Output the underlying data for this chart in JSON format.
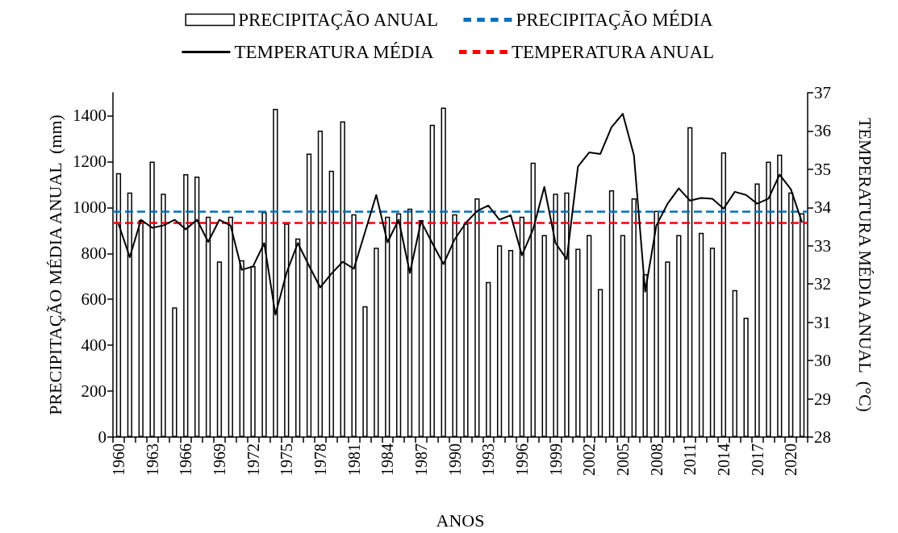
{
  "chart_data": {
    "type": "bar",
    "xlabel": "ANOS",
    "ylabel": "PRECIPITAÇÃO MÉDIA ANUAL  (mm)",
    "y2label": "TEMPERATURA MÉDIA ANUAL  (°C)",
    "categories": [
      "1960",
      null,
      null,
      "1963",
      null,
      null,
      "1966",
      null,
      null,
      "1969",
      null,
      null,
      "1972",
      null,
      null,
      "1975",
      null,
      null,
      "1978",
      null,
      null,
      "1981",
      null,
      null,
      "1984",
      null,
      null,
      "1987",
      null,
      null,
      "1990",
      null,
      null,
      "1993",
      null,
      null,
      "1996",
      null,
      null,
      "1999",
      null,
      null,
      "2002",
      null,
      null,
      "2005",
      null,
      null,
      "2008",
      null,
      null,
      "2011",
      null,
      null,
      "2014",
      null,
      null,
      "2017",
      null,
      null,
      "2020",
      null
    ],
    "series": [
      {
        "name": "PRECIPITAÇÃO ANUAL",
        "color": "#ffffff",
        "values": [
          1150,
          1065,
          945,
          1200,
          1060,
          565,
          1145,
          1135,
          960,
          765,
          960,
          770,
          745,
          980,
          1430,
          930,
          865,
          1235,
          1335,
          1160,
          1375,
          970,
          570,
          825,
          960,
          975,
          995,
          945,
          1360,
          1435,
          970,
          930,
          1040,
          675,
          835,
          815,
          960,
          1195,
          880,
          1060,
          1065,
          820,
          880,
          645,
          1075,
          880,
          1040,
          710,
          985,
          765,
          880,
          1350,
          890,
          825,
          1240,
          640,
          520,
          1105,
          1200,
          1230,
          1065,
          975
        ]
      },
      {
        "name": "TEMPERATURA MÉDIA",
        "type": "line",
        "axis": "y2",
        "color": "#000000",
        "values": [
          33.57,
          32.7,
          33.68,
          33.47,
          33.53,
          33.68,
          33.43,
          33.68,
          33.1,
          33.68,
          33.53,
          32.37,
          32.46,
          33.07,
          31.2,
          32.3,
          33.07,
          32.48,
          31.91,
          32.27,
          32.58,
          32.4,
          33.36,
          34.33,
          33.09,
          33.68,
          32.29,
          33.64,
          33.07,
          32.52,
          33.17,
          33.6,
          33.91,
          34.05,
          33.68,
          33.8,
          32.75,
          33.43,
          34.54,
          33.07,
          32.65,
          35.07,
          35.44,
          35.4,
          36.1,
          36.45,
          35.36,
          31.8,
          33.53,
          34.1,
          34.5,
          34.18,
          34.25,
          34.23,
          33.97,
          34.41,
          34.33,
          34.1,
          34.23,
          34.86,
          34.48,
          33.61
        ]
      }
    ],
    "ref_lines": [
      {
        "axis": "y",
        "value": 983,
        "label": "PRECIPITAÇÃO MÉDIA",
        "color": "#0070c0",
        "line_style": "dashed"
      },
      {
        "axis": "y2",
        "value": 33.6,
        "label": "TEMPERATURA ANUAL",
        "color": "#ff0000",
        "line_style": "dashed"
      }
    ],
    "ylim": [
      0,
      1500
    ],
    "yticks": [
      0,
      200,
      400,
      600,
      800,
      1000,
      1200,
      1400
    ],
    "y2lim": [
      28,
      37
    ],
    "y2ticks": [
      28,
      29,
      30,
      31,
      32,
      33,
      34,
      35,
      36,
      37
    ],
    "legend": "top",
    "marker": "none",
    "grid": false
  }
}
